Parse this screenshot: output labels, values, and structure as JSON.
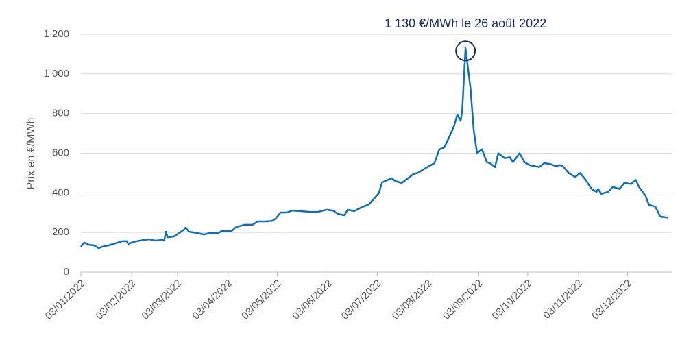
{
  "chart_data": {
    "type": "line",
    "annotation": {
      "text": "1 130 €/MWh le 26 août 2022",
      "x": "26/08/2022",
      "y": 1130
    },
    "y_label": "Prix en €/MWh",
    "color": "#0a6fbd",
    "annotation_color": "#1a2b6d",
    "grid": true,
    "x": [
      "03/01/2022",
      "05/01/2022",
      "08/01/2022",
      "11/01/2022",
      "14/01/2022",
      "16/01/2022",
      "20/01/2022",
      "24/01/2022",
      "28/01/2022",
      "31/01/2022",
      "01/02/2022",
      "04/02/2022",
      "08/02/2022",
      "11/02/2022",
      "14/02/2022",
      "17/02/2022",
      "23/02/2022",
      "24/02/2022",
      "25/02/2022",
      "01/03/2022",
      "04/03/2022",
      "07/03/2022",
      "08/03/2022",
      "10/03/2022",
      "15/03/2022",
      "19/03/2022",
      "23/03/2022",
      "28/03/2022",
      "30/03/2022",
      "05/04/2022",
      "08/04/2022",
      "13/04/2022",
      "18/04/2022",
      "21/04/2022",
      "26/04/2022",
      "30/04/2022",
      "02/05/2022",
      "05/05/2022",
      "09/05/2022",
      "12/05/2022",
      "17/05/2022",
      "23/05/2022",
      "28/05/2022",
      "02/06/2022",
      "06/06/2022",
      "09/06/2022",
      "13/06/2022",
      "15/06/2022",
      "19/06/2022",
      "23/06/2022",
      "28/06/2022",
      "01/07/2022",
      "04/07/2022",
      "06/07/2022",
      "08/07/2022",
      "12/07/2022",
      "14/07/2022",
      "18/07/2022",
      "22/07/2022",
      "25/07/2022",
      "28/07/2022",
      "01/08/2022",
      "04/08/2022",
      "07/08/2022",
      "10/08/2022",
      "13/08/2022",
      "16/08/2022",
      "19/08/2022",
      "21/08/2022",
      "23/08/2022",
      "24/08/2022",
      "26/08/2022",
      "27/08/2022",
      "29/08/2022",
      "31/08/2022",
      "02/09/2022",
      "05/09/2022",
      "08/09/2022",
      "10/09/2022",
      "13/09/2022",
      "15/09/2022",
      "19/09/2022",
      "22/09/2022",
      "24/09/2022",
      "28/09/2022",
      "01/10/2022",
      "04/10/2022",
      "10/10/2022",
      "13/10/2022",
      "17/10/2022",
      "20/10/2022",
      "23/10/2022",
      "25/10/2022",
      "28/10/2022",
      "01/11/2022",
      "04/11/2022",
      "07/11/2022",
      "11/11/2022",
      "14/11/2022",
      "15/11/2022",
      "17/11/2022",
      "21/11/2022",
      "24/11/2022",
      "28/11/2022",
      "01/12/2022",
      "05/12/2022",
      "08/12/2022",
      "10/12/2022",
      "14/12/2022",
      "16/12/2022",
      "20/12/2022",
      "23/12/2022",
      "28/12/2022"
    ],
    "values": [
      128,
      149,
      138,
      135,
      121,
      128,
      135,
      145,
      156,
      156,
      142,
      152,
      159,
      163,
      166,
      159,
      163,
      204,
      176,
      180,
      197,
      214,
      225,
      204,
      197,
      190,
      197,
      197,
      207,
      207,
      228,
      239,
      239,
      256,
      256,
      259,
      270,
      301,
      301,
      311,
      308,
      304,
      304,
      315,
      311,
      294,
      287,
      315,
      308,
      325,
      342,
      370,
      398,
      453,
      460,
      474,
      460,
      450,
      474,
      494,
      501,
      522,
      536,
      550,
      619,
      629,
      681,
      737,
      795,
      764,
      820,
      1130,
      1062,
      930,
      716,
      600,
      620,
      555,
      550,
      530,
      600,
      575,
      580,
      555,
      600,
      555,
      540,
      530,
      550,
      545,
      535,
      540,
      530,
      500,
      480,
      500,
      470,
      420,
      405,
      420,
      395,
      405,
      430,
      420,
      450,
      445,
      465,
      430,
      385,
      340,
      330,
      280,
      275
    ],
    "xlim": [
      "03/01/2022",
      "30/12/2022"
    ],
    "xticks": [
      "03/01/2022",
      "03/02/2022",
      "03/03/2022",
      "03/04/2022",
      "03/05/2022",
      "03/06/2022",
      "03/07/2022",
      "03/08/2022",
      "03/09/2022",
      "03/10/2022",
      "03/11/2022",
      "03/12/2022"
    ],
    "ylim": [
      0,
      1200
    ],
    "yticks": [
      0,
      200,
      400,
      600,
      800,
      {
        "value": 1000,
        "label": "1 000"
      },
      {
        "value": 1200,
        "label": "1 200"
      }
    ]
  }
}
